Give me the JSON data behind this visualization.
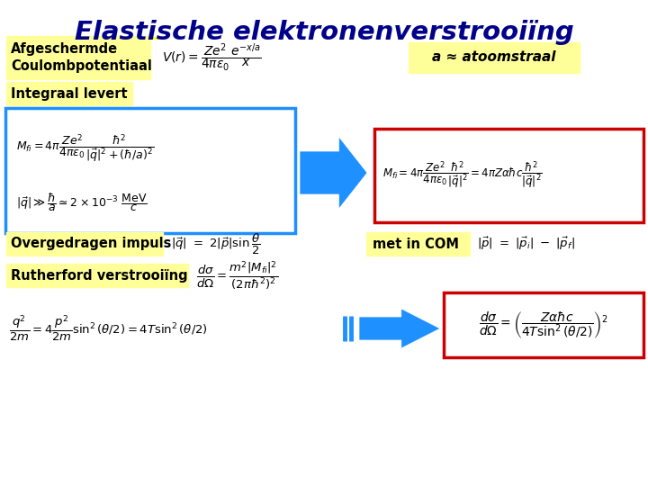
{
  "title": "Elastische elektronenverstrooiïng",
  "title_color": "#00008B",
  "bg_color": "#ffffff",
  "yellow_bg": "#FFFF99",
  "blue_box_color": "#1E90FF",
  "red_box_color": "#CC0000",
  "arrow_blue": "#1E90FF",
  "label1": "Afgeschermde\nCoulombpotentiaal",
  "label2": "a ≈ atoomstraal",
  "label3": "Integraal levert",
  "label4": "Overgedragen impuls",
  "label5": "met in COM",
  "label6": "Rutherford verstrooiïng"
}
